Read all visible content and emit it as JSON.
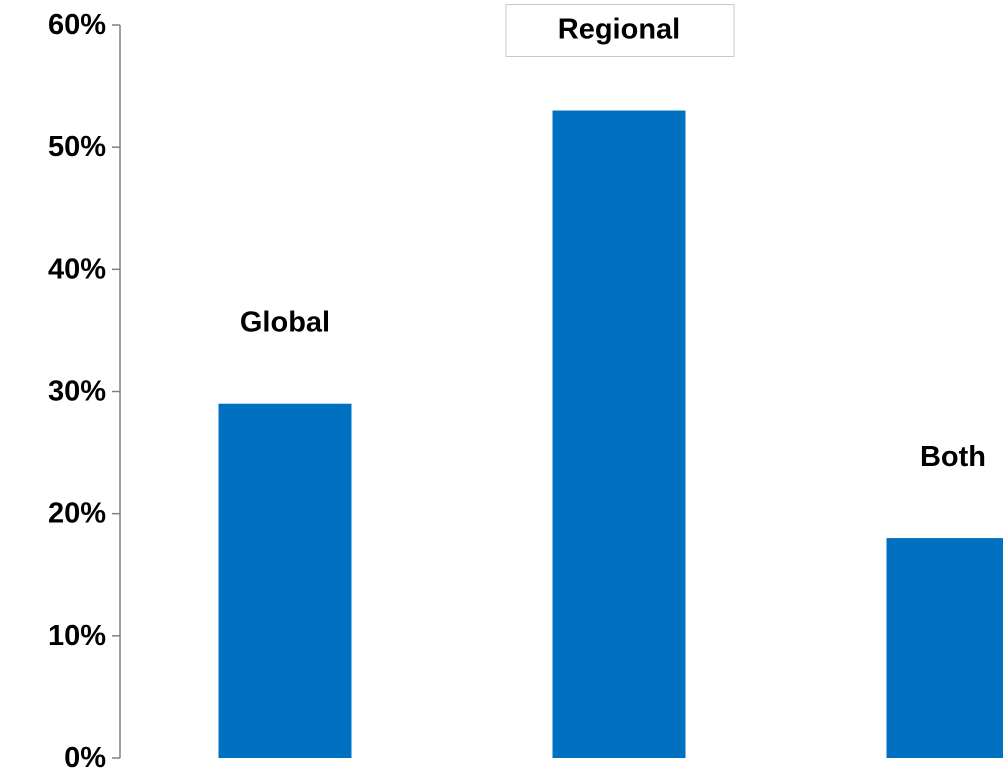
{
  "chart_data": {
    "type": "bar",
    "title": "",
    "xlabel": "",
    "ylabel": "",
    "categories": [
      "Global",
      "Regional",
      "Both"
    ],
    "values": [
      29,
      53,
      18
    ],
    "unit": "%",
    "ylim": [
      0,
      60
    ],
    "yticks": [
      "0%",
      "10%",
      "20%",
      "30%",
      "40%",
      "50%",
      "60%"
    ],
    "grid": false,
    "legend": "none",
    "bar_color": "#0070C0",
    "boxed_labels": [
      "Regional"
    ]
  }
}
